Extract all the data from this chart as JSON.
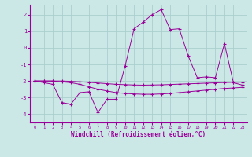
{
  "xlabel": "Windchill (Refroidissement éolien,°C)",
  "background_color": "#cce8e6",
  "grid_color": "#aacfcd",
  "line_color": "#990099",
  "x_ticks": [
    0,
    1,
    2,
    3,
    4,
    5,
    6,
    7,
    8,
    9,
    10,
    11,
    12,
    13,
    14,
    15,
    16,
    17,
    18,
    19,
    20,
    21,
    22,
    23
  ],
  "y_ticks": [
    -4,
    -3,
    -2,
    -1,
    0,
    1,
    2
  ],
  "ylim": [
    -4.5,
    2.6
  ],
  "xlim": [
    -0.5,
    23.5
  ],
  "series1_y": [
    -2.0,
    -2.1,
    -2.2,
    -3.3,
    -3.4,
    -2.7,
    -2.65,
    -3.9,
    -3.1,
    -3.1,
    -1.1,
    1.15,
    1.55,
    2.0,
    2.3,
    1.1,
    1.15,
    -0.5,
    -1.8,
    -1.75,
    -1.8,
    0.25,
    -2.1,
    -2.25
  ],
  "series2_y": [
    -2.0,
    -2.0,
    -2.0,
    -2.05,
    -2.1,
    -2.2,
    -2.35,
    -2.5,
    -2.6,
    -2.7,
    -2.75,
    -2.78,
    -2.8,
    -2.8,
    -2.78,
    -2.75,
    -2.7,
    -2.65,
    -2.6,
    -2.55,
    -2.5,
    -2.45,
    -2.42,
    -2.38
  ],
  "series3_y": [
    -2.0,
    -2.0,
    -2.0,
    -2.0,
    -2.02,
    -2.05,
    -2.08,
    -2.12,
    -2.16,
    -2.2,
    -2.22,
    -2.24,
    -2.25,
    -2.24,
    -2.23,
    -2.21,
    -2.19,
    -2.17,
    -2.15,
    -2.13,
    -2.11,
    -2.09,
    -2.08,
    -2.07
  ]
}
